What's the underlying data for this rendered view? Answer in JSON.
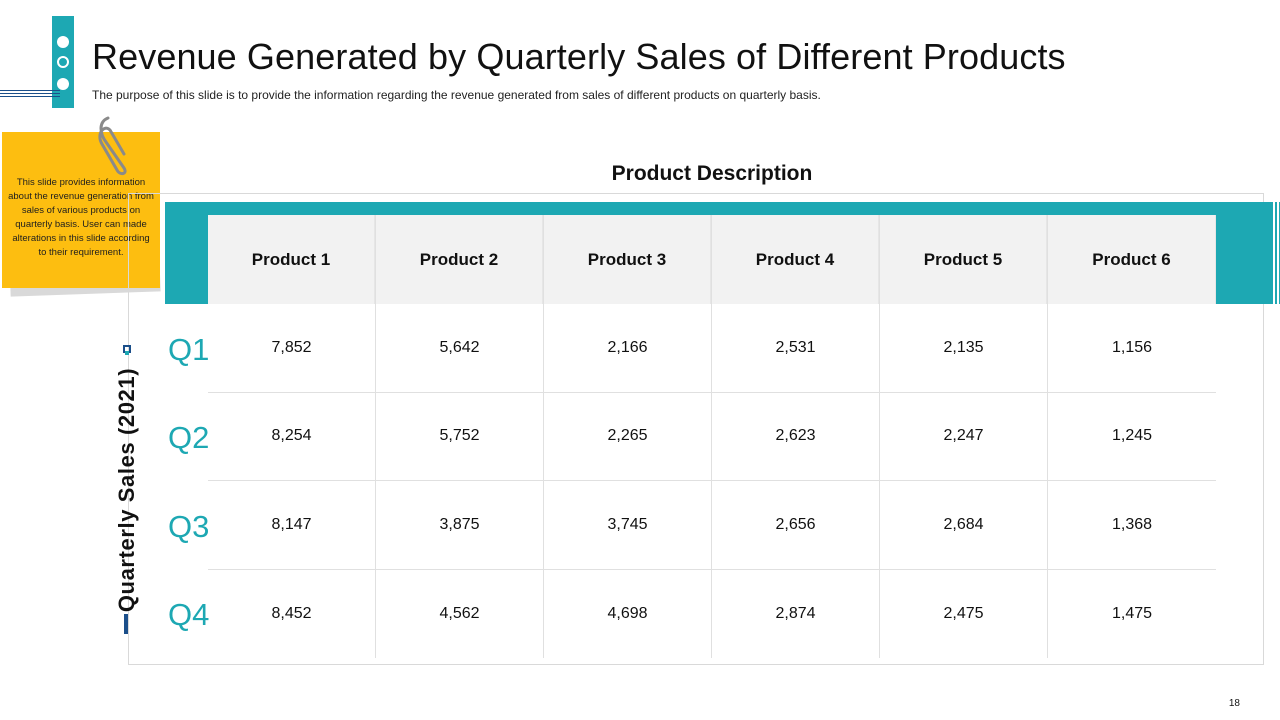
{
  "slide": {
    "title": "Revenue Generated by Quarterly Sales of Different Products",
    "subtitle": "The purpose of this slide is to provide the information regarding the revenue generated from sales of different products on quarterly basis.",
    "page_number": "18"
  },
  "note": {
    "text": "This slide provides information about the revenue generation from sales of various products on quarterly basis. User can made alterations in this slide according to their requirement."
  },
  "table": {
    "heading": "Product Description",
    "row_axis_label": "Quarterly Sales (2021)",
    "columns": [
      "Product 1",
      "Product 2",
      "Product 3",
      "Product 4",
      "Product 5",
      "Product 6"
    ],
    "rows": [
      {
        "label": "Q1",
        "values": [
          "7,852",
          "5,642",
          "2,166",
          "2,531",
          "2,135",
          "1,156"
        ]
      },
      {
        "label": "Q2",
        "values": [
          "8,254",
          "5,752",
          "2,265",
          "2,623",
          "2,247",
          "1,245"
        ]
      },
      {
        "label": "Q3",
        "values": [
          "8,147",
          "3,875",
          "3,745",
          "2,656",
          "2,684",
          "1,368"
        ]
      },
      {
        "label": "Q4",
        "values": [
          "8,452",
          "4,562",
          "4,698",
          "2,874",
          "2,475",
          "1,475"
        ]
      }
    ]
  },
  "colors": {
    "accent_teal": "#1da8b3",
    "note_yellow": "#fdbe10",
    "navy": "#1b4f8a"
  }
}
